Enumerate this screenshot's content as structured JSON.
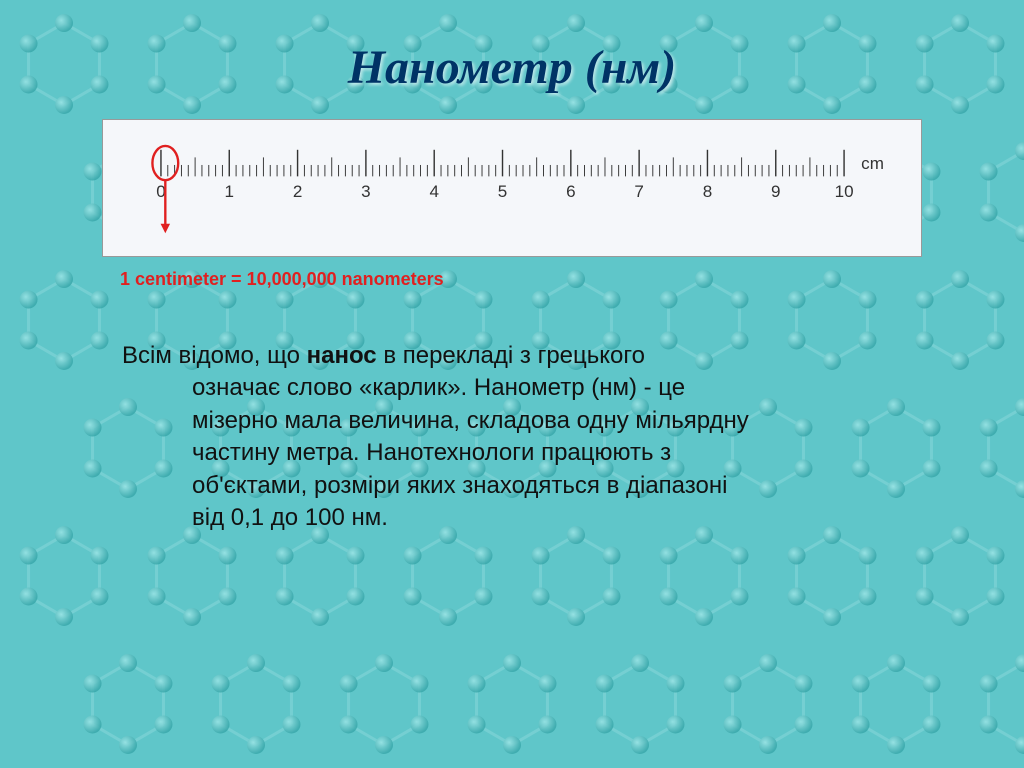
{
  "background": {
    "base_color": "#5fc6c9",
    "molecule_color_light": "#9ce5e6",
    "molecule_color_dark": "#3aa8ab",
    "bond_color": "#7fd4d6",
    "cell": 128,
    "rows": 6,
    "cols": 8
  },
  "title": "Нанометр (нм)",
  "ruler": {
    "min": 0,
    "max": 10,
    "major_ticks": [
      0,
      1,
      2,
      3,
      4,
      5,
      6,
      7,
      8,
      9,
      10
    ],
    "minor_per_major": 10,
    "unit_label": "cm",
    "label_fontsize": 18,
    "tick_color": "#333333",
    "circle_color": "#e02020",
    "arrow_color": "#e02020",
    "circle_target_mm": 1,
    "background": "#f5f7fa"
  },
  "caption": "1 centimeter = 10,000,000 nanometers",
  "body": {
    "p1_a": "Всім відомо, що ",
    "p1_bold": "нанос",
    "p1_b": " в перекладі з грецького ",
    "p2": "означає слово «карлик». Нанометр (нм) - це",
    "p3": "мізерно мала величина, складова одну мільярдну",
    "p4": "частину метра. Нанотехнологи працюють з",
    "p5": "об'єктами, розміри яких знаходяться в діапазоні",
    "p6": "від 0,1 до 100 нм."
  }
}
